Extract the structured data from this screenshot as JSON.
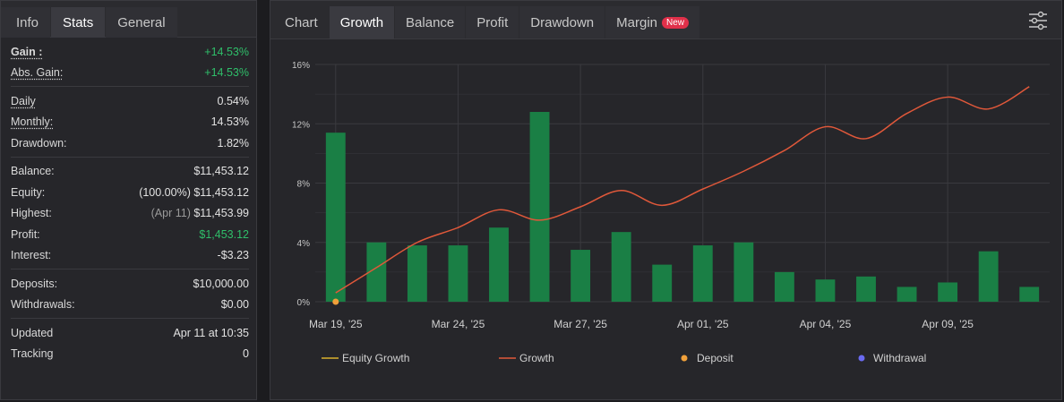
{
  "left_tabs": [
    "Info",
    "Stats",
    "General"
  ],
  "stats": {
    "gain_label": "Gain :",
    "gain_value": "+14.53%",
    "abs_gain_label": "Abs. Gain:",
    "abs_gain_value": "+14.53%",
    "daily_label": "Daily",
    "daily_value": "0.54%",
    "monthly_label": "Monthly:",
    "monthly_value": "14.53%",
    "drawdown_label": "Drawdown:",
    "drawdown_value": "1.82%",
    "balance_label": "Balance:",
    "balance_value": "$11,453.12",
    "equity_label": "Equity:",
    "equity_note": "(100.00%)",
    "equity_value": "$11,453.12",
    "highest_label": "Highest:",
    "highest_note": "(Apr 11)",
    "highest_value": "$11,453.99",
    "profit_label": "Profit:",
    "profit_value": "$1,453.12",
    "interest_label": "Interest:",
    "interest_value": "-$3.23",
    "deposits_label": "Deposits:",
    "deposits_value": "$10,000.00",
    "withdrawals_label": "Withdrawals:",
    "withdrawals_value": "$0.00",
    "updated_label": "Updated",
    "updated_value": "Apr 11 at 10:35",
    "tracking_label": "Tracking",
    "tracking_value": "0"
  },
  "chart_tabs": [
    "Chart",
    "Growth",
    "Balance",
    "Profit",
    "Drawdown",
    "Margin"
  ],
  "margin_badge": "New",
  "colors": {
    "bar": "#1a7f45",
    "growth_line": "#e0583a",
    "equity_line": "#d9b12c",
    "deposit": "#f0a03a",
    "withdrawal": "#6a6af0",
    "grid": "#3a3a3f"
  },
  "chart_data": {
    "type": "bar",
    "x_ticks": [
      "Mar 19, '25",
      "Mar 24, '25",
      "Mar 27, '25",
      "Apr 01, '25",
      "Apr 04, '25",
      "Apr 09, '25"
    ],
    "y_ticks": [
      "16%",
      "12%",
      "8%",
      "4%",
      "0%"
    ],
    "ylim": [
      0,
      16
    ],
    "bars": [
      11.4,
      4.0,
      3.8,
      3.8,
      5.0,
      12.8,
      3.5,
      4.7,
      2.5,
      3.8,
      4.0,
      2.0,
      1.5,
      1.7,
      1.0,
      1.3,
      3.4,
      1.0
    ],
    "growth": [
      0.6,
      2.3,
      4.0,
      5.0,
      6.2,
      5.5,
      6.4,
      7.5,
      6.5,
      7.6,
      8.8,
      10.2,
      11.8,
      11.0,
      12.7,
      13.8,
      13.0,
      14.5
    ],
    "deposit_index": 0,
    "legend": [
      "Equity Growth",
      "Growth",
      "Deposit",
      "Withdrawal"
    ]
  }
}
